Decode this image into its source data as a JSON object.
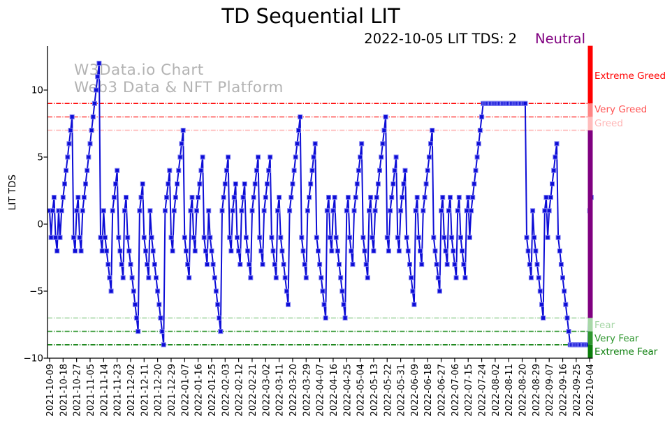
{
  "title": "TD Sequential LIT",
  "subtitle": {
    "date_value": "2022-10-05 LIT TDS: 2",
    "sentiment": "Neutral",
    "sentiment_color": "#800080"
  },
  "watermark": {
    "line1": "W3Data.io Chart",
    "line2": "Web3 Data & NFT Platform"
  },
  "chart_data": {
    "type": "line",
    "title": "TD Sequential LIT",
    "ylabel": "LIT TDS",
    "ylim": [
      -10,
      13.3
    ],
    "yticks": [
      10,
      5,
      0,
      -5,
      -10
    ],
    "ytick_labels": [
      "10",
      "5",
      "0",
      "−5",
      "−10"
    ],
    "grid": false,
    "x_start_date": "2021-10-09",
    "x_end_date": "2022-10-05",
    "x_tick_interval_days": 9,
    "x_tick_labels": [
      "2021-10-09",
      "2021-10-18",
      "2021-10-27",
      "2021-11-05",
      "2021-11-14",
      "2021-11-23",
      "2021-12-02",
      "2021-12-11",
      "2021-12-20",
      "2021-12-29",
      "2022-01-07",
      "2022-01-16",
      "2022-01-25",
      "2022-02-03",
      "2022-02-12",
      "2022-02-21",
      "2022-03-02",
      "2022-03-11",
      "2022-03-20",
      "2022-03-29",
      "2022-04-07",
      "2022-04-16",
      "2022-04-25",
      "2022-05-04",
      "2022-05-13",
      "2022-05-22",
      "2022-05-31",
      "2022-06-09",
      "2022-06-18",
      "2022-06-27",
      "2022-07-06",
      "2022-07-15",
      "2022-07-24",
      "2022-08-02",
      "2022-08-11",
      "2022-08-20",
      "2022-08-29",
      "2022-09-07",
      "2022-09-16",
      "2022-09-25",
      "2022-10-04"
    ],
    "series": [
      {
        "name": "LIT TDS",
        "color": "#0d0dd6",
        "marker": "square",
        "values": [
          1,
          -1,
          1,
          2,
          -1,
          -2,
          1,
          -1,
          1,
          2,
          3,
          4,
          5,
          6,
          7,
          8,
          -1,
          -2,
          1,
          2,
          -1,
          -2,
          1,
          2,
          3,
          4,
          5,
          6,
          7,
          8,
          9,
          10,
          11,
          12,
          -1,
          -2,
          1,
          -1,
          -2,
          -3,
          -4,
          -5,
          1,
          2,
          3,
          4,
          -1,
          -2,
          -3,
          -4,
          1,
          2,
          -1,
          -2,
          -3,
          -4,
          -5,
          -6,
          -7,
          -8,
          1,
          2,
          3,
          -1,
          -2,
          -3,
          -4,
          1,
          -1,
          -2,
          -3,
          -4,
          -5,
          -6,
          -7,
          -8,
          -9,
          1,
          2,
          3,
          4,
          -1,
          -2,
          1,
          2,
          3,
          4,
          5,
          6,
          7,
          -1,
          -2,
          -3,
          -4,
          1,
          2,
          -1,
          -2,
          1,
          2,
          3,
          4,
          5,
          -1,
          -2,
          -3,
          1,
          -1,
          -2,
          -3,
          -4,
          -5,
          -6,
          -7,
          -8,
          1,
          2,
          3,
          4,
          5,
          -1,
          -2,
          1,
          2,
          3,
          -1,
          -2,
          -3,
          1,
          2,
          3,
          -1,
          -2,
          -3,
          -4,
          1,
          2,
          3,
          4,
          5,
          -1,
          -2,
          -3,
          1,
          2,
          3,
          4,
          5,
          -1,
          -2,
          -3,
          -4,
          1,
          2,
          -1,
          -2,
          -3,
          -4,
          -5,
          -6,
          1,
          2,
          3,
          4,
          5,
          6,
          7,
          8,
          -1,
          -2,
          -3,
          -4,
          1,
          2,
          3,
          4,
          5,
          6,
          -1,
          -2,
          -3,
          -4,
          -5,
          -6,
          -7,
          1,
          2,
          -1,
          -2,
          1,
          2,
          -1,
          -2,
          -3,
          -4,
          -5,
          -6,
          -7,
          1,
          2,
          -1,
          -2,
          -3,
          1,
          2,
          3,
          4,
          5,
          6,
          -1,
          -2,
          -3,
          -4,
          1,
          2,
          -1,
          -2,
          1,
          2,
          3,
          4,
          5,
          6,
          7,
          8,
          -1,
          -2,
          1,
          2,
          3,
          4,
          5,
          -1,
          -2,
          1,
          2,
          3,
          4,
          -1,
          -2,
          -3,
          -4,
          -5,
          -6,
          1,
          2,
          -1,
          -2,
          -3,
          1,
          2,
          3,
          4,
          5,
          6,
          7,
          -1,
          -2,
          -3,
          -4,
          -5,
          1,
          2,
          -1,
          -2,
          -3,
          1,
          2,
          -1,
          -2,
          -3,
          -4,
          1,
          2,
          -1,
          -2,
          -3,
          -4,
          1,
          2,
          -1,
          1,
          2,
          3,
          4,
          5,
          6,
          7,
          8,
          9,
          9,
          9,
          9,
          9,
          9,
          9,
          9,
          9,
          9,
          9,
          9,
          9,
          9,
          9,
          9,
          9,
          9,
          9,
          9,
          9,
          9,
          9,
          9,
          9,
          9,
          9,
          9,
          9,
          -1,
          -2,
          -3,
          -4,
          1,
          -1,
          -2,
          -3,
          -4,
          -5,
          -6,
          -7,
          1,
          2,
          -1,
          1,
          2,
          3,
          4,
          5,
          6,
          -1,
          -2,
          -3,
          -4,
          -5,
          -6,
          -7,
          -8,
          -9,
          -9,
          -9,
          -9,
          -9,
          -9,
          -9,
          -9,
          -9,
          -9,
          -9,
          -9,
          -9,
          1,
          2
        ]
      }
    ],
    "thresholds": [
      {
        "label": "Extreme Greed",
        "value": 9,
        "color": "#ff0000"
      },
      {
        "label": "Very Greed",
        "value": 8,
        "color": "#ff5252"
      },
      {
        "label": "Greed",
        "value": 7,
        "color": "#ffb6b6"
      },
      {
        "label": "Fear",
        "value": -7,
        "color": "#a5d6a5"
      },
      {
        "label": "Very Fear",
        "value": -8,
        "color": "#2e962e"
      },
      {
        "label": "Extreme Fear",
        "value": -9,
        "color": "#0a7d0a"
      }
    ],
    "sentiment_bar": [
      {
        "zone": "Extreme Greed",
        "from": 13.3,
        "to": 9,
        "color": "#ff0000"
      },
      {
        "zone": "Very Greed",
        "from": 9,
        "to": 8,
        "color": "#ff8585"
      },
      {
        "zone": "Greed",
        "from": 8,
        "to": 7,
        "color": "#ffbdbd"
      },
      {
        "zone": "Neutral",
        "from": 7,
        "to": -7,
        "color": "#800080"
      },
      {
        "zone": "Fear",
        "from": -7,
        "to": -8,
        "color": "#a8d8a8"
      },
      {
        "zone": "Very Fear",
        "from": -8,
        "to": -9,
        "color": "#2e962e"
      },
      {
        "zone": "Extreme Fear",
        "from": -9,
        "to": -10,
        "color": "#0a7d0a"
      }
    ]
  }
}
